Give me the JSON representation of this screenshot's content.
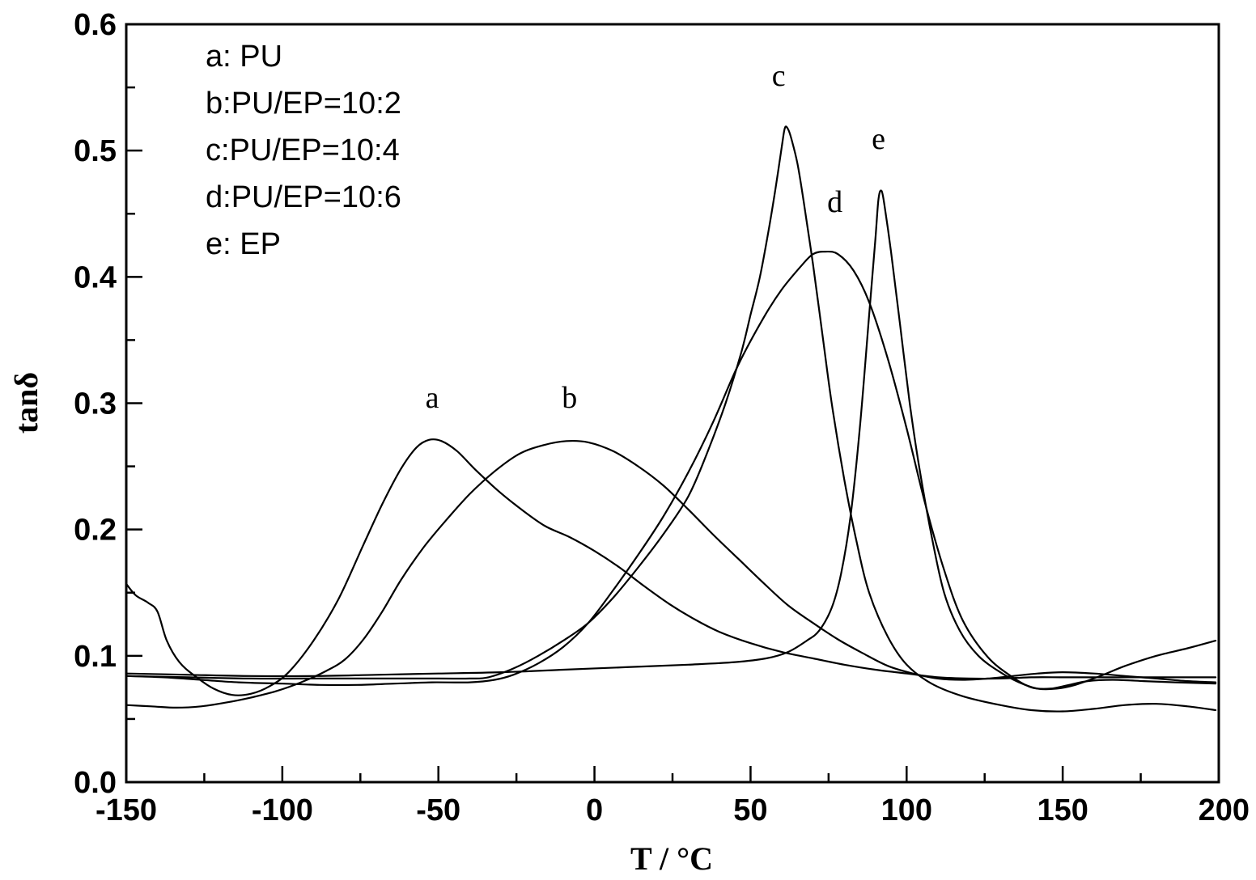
{
  "chart_data": {
    "type": "line",
    "xlabel": "T / °C",
    "ylabel": "tanδ",
    "xlim": [
      -150,
      200
    ],
    "ylim": [
      0.0,
      0.6
    ],
    "x_ticks": [
      "-150",
      "-100",
      "-50",
      "0",
      "50",
      "100",
      "150",
      "200"
    ],
    "y_ticks": [
      "0.0",
      "0.1",
      "0.2",
      "0.3",
      "0.4",
      "0.5",
      "0.6"
    ],
    "grid": false,
    "legend": {
      "placement": "top-left",
      "entries": [
        "a:  PU",
        "b:PU/EP=10:2",
        "c:PU/EP=10:4",
        "d:PU/EP=10:6",
        "e:  EP"
      ]
    },
    "series": [
      {
        "name": "a",
        "peak_label": {
          "text": "a",
          "x": -52,
          "y": 0.29
        },
        "points": [
          [
            -150,
            0.157
          ],
          [
            -147,
            0.148
          ],
          [
            -143,
            0.142
          ],
          [
            -140,
            0.135
          ],
          [
            -137,
            0.112
          ],
          [
            -133,
            0.095
          ],
          [
            -128,
            0.084
          ],
          [
            -122,
            0.074
          ],
          [
            -116,
            0.069
          ],
          [
            -110,
            0.07
          ],
          [
            -104,
            0.076
          ],
          [
            -98,
            0.087
          ],
          [
            -90,
            0.112
          ],
          [
            -82,
            0.145
          ],
          [
            -74,
            0.188
          ],
          [
            -68,
            0.22
          ],
          [
            -62,
            0.248
          ],
          [
            -57,
            0.265
          ],
          [
            -53,
            0.271
          ],
          [
            -49,
            0.27
          ],
          [
            -44,
            0.262
          ],
          [
            -38,
            0.247
          ],
          [
            -31,
            0.231
          ],
          [
            -24,
            0.217
          ],
          [
            -16,
            0.203
          ],
          [
            -8,
            0.194
          ],
          [
            0,
            0.183
          ],
          [
            8,
            0.17
          ],
          [
            16,
            0.155
          ],
          [
            24,
            0.141
          ],
          [
            32,
            0.129
          ],
          [
            40,
            0.119
          ],
          [
            50,
            0.11
          ],
          [
            60,
            0.103
          ],
          [
            70,
            0.098
          ],
          [
            80,
            0.093
          ],
          [
            90,
            0.089
          ],
          [
            100,
            0.086
          ],
          [
            110,
            0.083
          ],
          [
            120,
            0.082
          ],
          [
            130,
            0.082
          ],
          [
            140,
            0.083
          ],
          [
            150,
            0.083
          ],
          [
            160,
            0.083
          ],
          [
            170,
            0.083
          ],
          [
            180,
            0.083
          ],
          [
            190,
            0.083
          ],
          [
            199,
            0.083
          ]
        ]
      },
      {
        "name": "b",
        "peak_label": {
          "text": "b",
          "x": -8,
          "y": 0.29
        },
        "points": [
          [
            -150,
            0.061
          ],
          [
            -142,
            0.06
          ],
          [
            -134,
            0.059
          ],
          [
            -126,
            0.06
          ],
          [
            -118,
            0.063
          ],
          [
            -110,
            0.067
          ],
          [
            -102,
            0.072
          ],
          [
            -94,
            0.079
          ],
          [
            -86,
            0.088
          ],
          [
            -80,
            0.097
          ],
          [
            -74,
            0.113
          ],
          [
            -68,
            0.135
          ],
          [
            -62,
            0.16
          ],
          [
            -55,
            0.185
          ],
          [
            -48,
            0.206
          ],
          [
            -40,
            0.228
          ],
          [
            -32,
            0.246
          ],
          [
            -24,
            0.26
          ],
          [
            -16,
            0.267
          ],
          [
            -9,
            0.27
          ],
          [
            -2,
            0.269
          ],
          [
            6,
            0.262
          ],
          [
            14,
            0.25
          ],
          [
            22,
            0.235
          ],
          [
            30,
            0.216
          ],
          [
            38,
            0.196
          ],
          [
            46,
            0.177
          ],
          [
            54,
            0.158
          ],
          [
            62,
            0.14
          ],
          [
            70,
            0.126
          ],
          [
            78,
            0.113
          ],
          [
            86,
            0.102
          ],
          [
            94,
            0.092
          ],
          [
            102,
            0.086
          ],
          [
            110,
            0.082
          ],
          [
            118,
            0.081
          ],
          [
            126,
            0.082
          ],
          [
            134,
            0.084
          ],
          [
            142,
            0.086
          ],
          [
            150,
            0.087
          ],
          [
            160,
            0.086
          ],
          [
            170,
            0.084
          ],
          [
            180,
            0.082
          ],
          [
            190,
            0.08
          ],
          [
            199,
            0.079
          ]
        ]
      },
      {
        "name": "c",
        "peak_label": {
          "text": "c",
          "x": 59,
          "y": 0.545
        },
        "points": [
          [
            -150,
            0.084
          ],
          [
            -130,
            0.083
          ],
          [
            -110,
            0.082
          ],
          [
            -90,
            0.082
          ],
          [
            -70,
            0.082
          ],
          [
            -50,
            0.082
          ],
          [
            -40,
            0.082
          ],
          [
            -34,
            0.083
          ],
          [
            -26,
            0.09
          ],
          [
            -18,
            0.1
          ],
          [
            -10,
            0.112
          ],
          [
            -2,
            0.126
          ],
          [
            6,
            0.146
          ],
          [
            14,
            0.17
          ],
          [
            22,
            0.196
          ],
          [
            30,
            0.226
          ],
          [
            36,
            0.26
          ],
          [
            42,
            0.3
          ],
          [
            47,
            0.34
          ],
          [
            50,
            0.37
          ],
          [
            53,
            0.4
          ],
          [
            56,
            0.44
          ],
          [
            58,
            0.47
          ],
          [
            60,
            0.503
          ],
          [
            61,
            0.518
          ],
          [
            62,
            0.517
          ],
          [
            63,
            0.51
          ],
          [
            65,
            0.49
          ],
          [
            67,
            0.46
          ],
          [
            70,
            0.41
          ],
          [
            73,
            0.355
          ],
          [
            76,
            0.3
          ],
          [
            80,
            0.24
          ],
          [
            84,
            0.19
          ],
          [
            88,
            0.15
          ],
          [
            94,
            0.115
          ],
          [
            100,
            0.093
          ],
          [
            108,
            0.078
          ],
          [
            118,
            0.068
          ],
          [
            130,
            0.061
          ],
          [
            140,
            0.057
          ],
          [
            150,
            0.056
          ],
          [
            160,
            0.058
          ],
          [
            170,
            0.061
          ],
          [
            180,
            0.062
          ],
          [
            190,
            0.06
          ],
          [
            199,
            0.057
          ]
        ]
      },
      {
        "name": "d",
        "peak_label": {
          "text": "d",
          "x": 77,
          "y": 0.445
        },
        "points": [
          [
            -150,
            0.084
          ],
          [
            -138,
            0.083
          ],
          [
            -126,
            0.081
          ],
          [
            -114,
            0.079
          ],
          [
            -100,
            0.078
          ],
          [
            -88,
            0.077
          ],
          [
            -76,
            0.077
          ],
          [
            -64,
            0.078
          ],
          [
            -52,
            0.079
          ],
          [
            -40,
            0.079
          ],
          [
            -32,
            0.081
          ],
          [
            -26,
            0.085
          ],
          [
            -18,
            0.094
          ],
          [
            -10,
            0.107
          ],
          [
            -2,
            0.126
          ],
          [
            6,
            0.152
          ],
          [
            14,
            0.18
          ],
          [
            22,
            0.21
          ],
          [
            30,
            0.245
          ],
          [
            38,
            0.285
          ],
          [
            46,
            0.33
          ],
          [
            54,
            0.367
          ],
          [
            60,
            0.39
          ],
          [
            66,
            0.408
          ],
          [
            70,
            0.418
          ],
          [
            74,
            0.42
          ],
          [
            78,
            0.418
          ],
          [
            83,
            0.405
          ],
          [
            88,
            0.38
          ],
          [
            94,
            0.335
          ],
          [
            100,
            0.28
          ],
          [
            106,
            0.22
          ],
          [
            112,
            0.168
          ],
          [
            118,
            0.128
          ],
          [
            126,
            0.099
          ],
          [
            134,
            0.083
          ],
          [
            140,
            0.075
          ],
          [
            146,
            0.074
          ],
          [
            152,
            0.077
          ],
          [
            158,
            0.08
          ],
          [
            166,
            0.081
          ],
          [
            176,
            0.08
          ],
          [
            186,
            0.079
          ],
          [
            199,
            0.078
          ]
        ]
      },
      {
        "name": "e",
        "peak_label": {
          "text": "e",
          "x": 91,
          "y": 0.495
        },
        "points": [
          [
            -150,
            0.086
          ],
          [
            -130,
            0.085
          ],
          [
            -110,
            0.084
          ],
          [
            -90,
            0.084
          ],
          [
            -70,
            0.085
          ],
          [
            -50,
            0.086
          ],
          [
            -30,
            0.087
          ],
          [
            -10,
            0.089
          ],
          [
            10,
            0.091
          ],
          [
            30,
            0.093
          ],
          [
            45,
            0.095
          ],
          [
            55,
            0.098
          ],
          [
            62,
            0.103
          ],
          [
            68,
            0.112
          ],
          [
            72,
            0.12
          ],
          [
            76,
            0.138
          ],
          [
            79,
            0.165
          ],
          [
            82,
            0.21
          ],
          [
            85,
            0.28
          ],
          [
            88,
            0.37
          ],
          [
            90,
            0.43
          ],
          [
            91,
            0.462
          ],
          [
            92,
            0.468
          ],
          [
            93,
            0.455
          ],
          [
            95,
            0.42
          ],
          [
            98,
            0.36
          ],
          [
            101,
            0.3
          ],
          [
            104,
            0.25
          ],
          [
            108,
            0.195
          ],
          [
            112,
            0.15
          ],
          [
            117,
            0.12
          ],
          [
            123,
            0.1
          ],
          [
            130,
            0.087
          ],
          [
            136,
            0.079
          ],
          [
            142,
            0.074
          ],
          [
            148,
            0.074
          ],
          [
            154,
            0.077
          ],
          [
            162,
            0.084
          ],
          [
            170,
            0.092
          ],
          [
            180,
            0.1
          ],
          [
            190,
            0.106
          ],
          [
            199,
            0.112
          ]
        ]
      }
    ]
  }
}
